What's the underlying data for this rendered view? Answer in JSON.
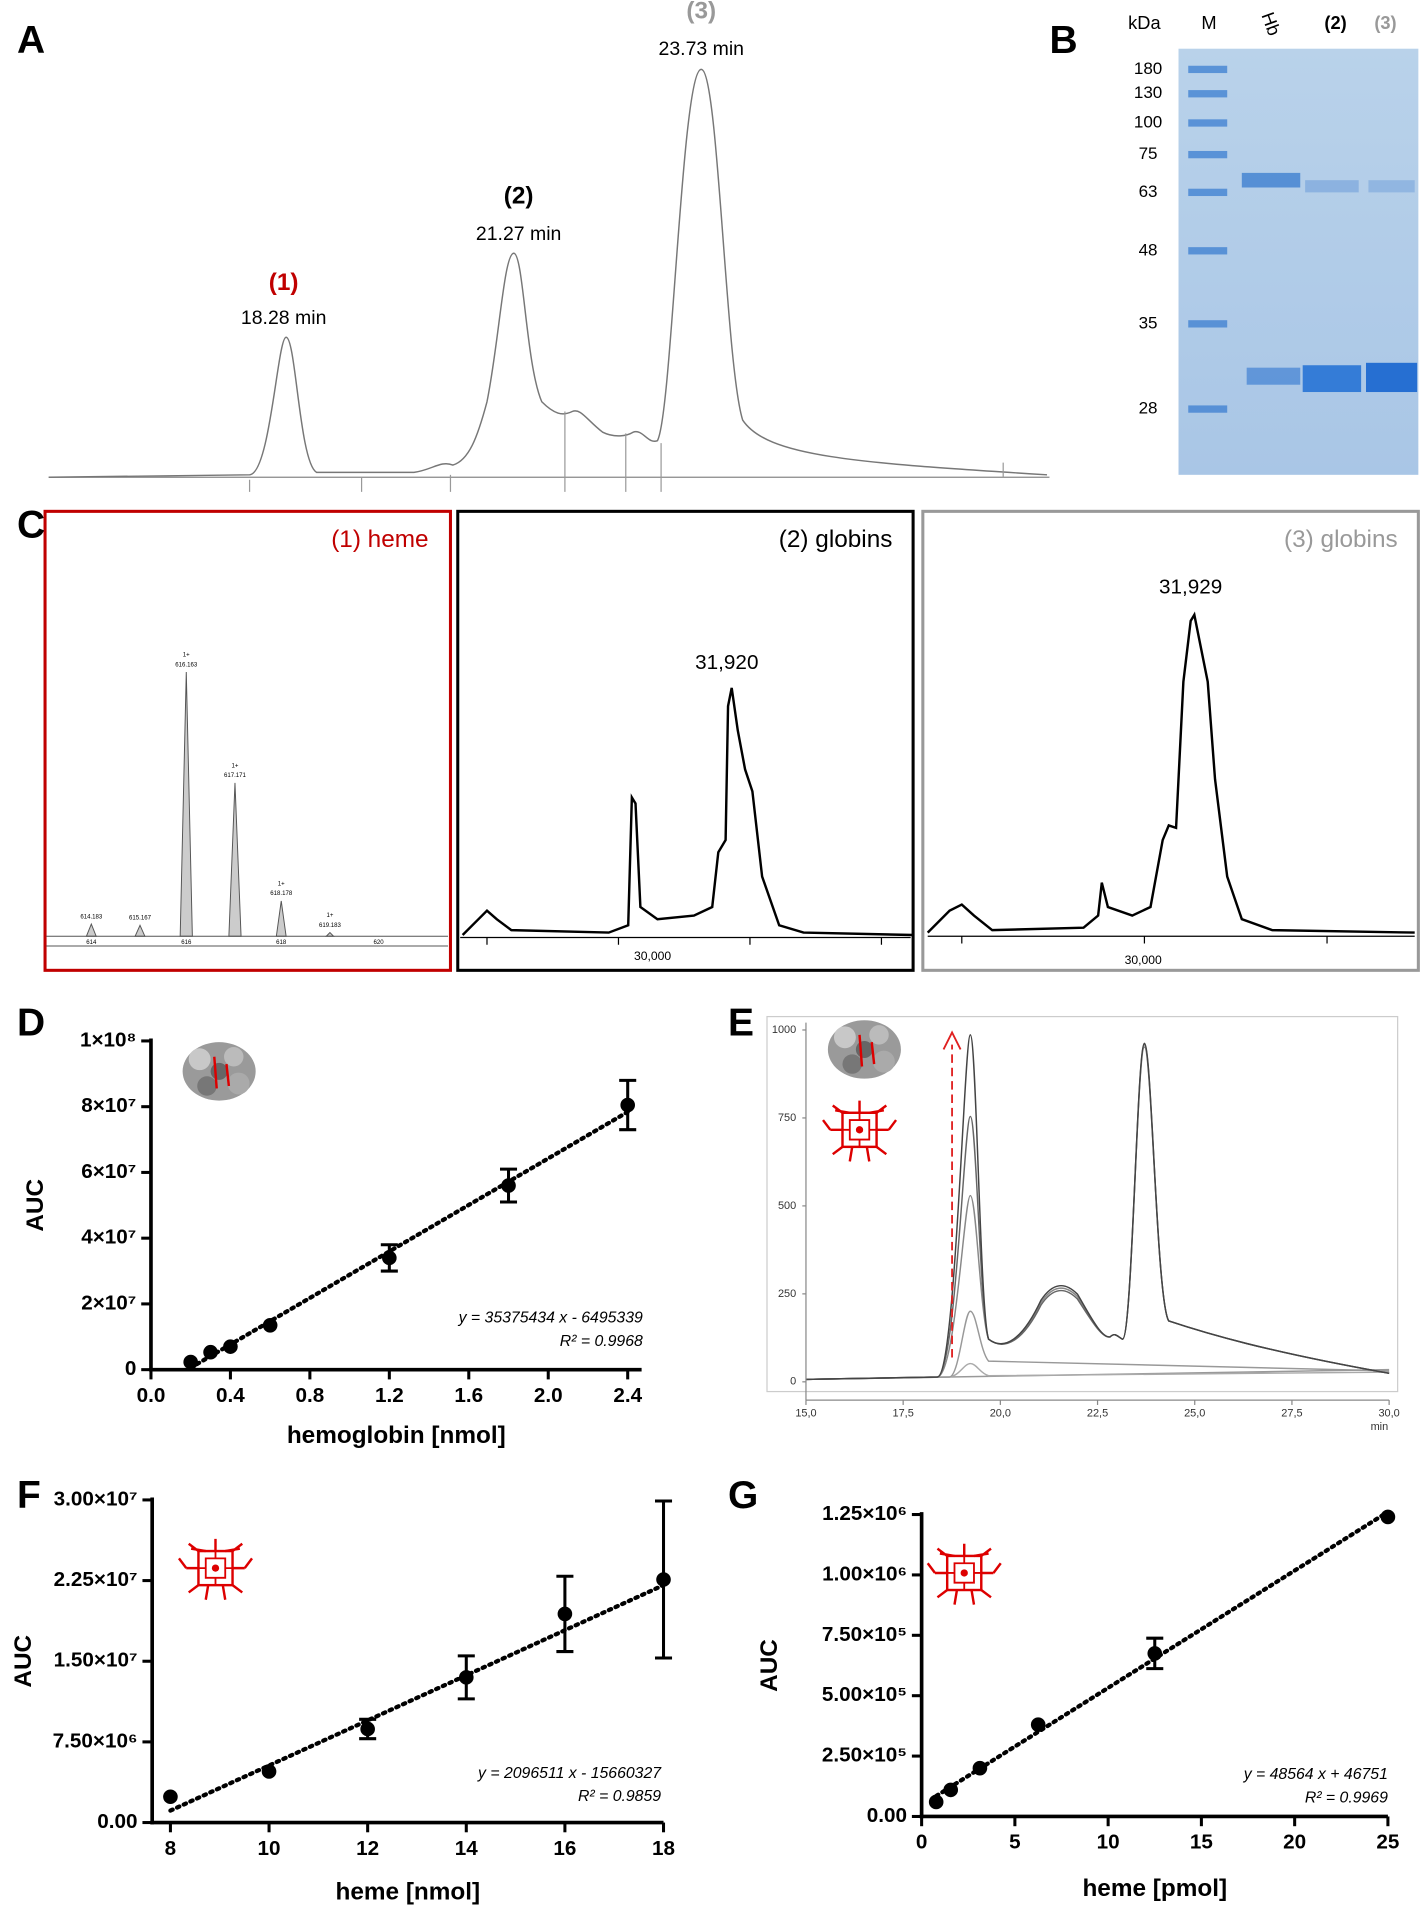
{
  "panel_labels": [
    "A",
    "B",
    "C",
    "D",
    "E",
    "F",
    "G"
  ],
  "chart_data": [
    {
      "type": "trace",
      "peaks": [
        {
          "label": "(1)",
          "time": "18.28 min",
          "color": "#c00000"
        },
        {
          "label": "(2)",
          "time": "21.27 min",
          "color": "#000000"
        },
        {
          "label": "(3)",
          "time": "23.73 min",
          "color": "#999999"
        }
      ]
    },
    {
      "type": "gel",
      "unit": "kDa",
      "lanes": [
        {
          "label": "M",
          "color": "#000000"
        },
        {
          "label": "Hb",
          "color": "#000000"
        },
        {
          "label": "(2)",
          "color": "#000000"
        },
        {
          "label": "(3)",
          "color": "#999999"
        }
      ],
      "markers": [
        180,
        130,
        100,
        75,
        63,
        48,
        35,
        28
      ]
    },
    {
      "type": "spectrum",
      "title": "(1) heme",
      "color": "#c00000",
      "peaks": [
        "614.183",
        "615.167",
        "616.163",
        "617.171",
        "618.178",
        "619.183"
      ],
      "charge": "1+",
      "axis_labels": [
        614,
        616,
        618,
        620
      ]
    },
    {
      "type": "spectrum",
      "title": "(2) globins",
      "color": "#000000",
      "peak_label": "31,920",
      "axis_label": "30,000"
    },
    {
      "type": "spectrum",
      "title": "(3) globins",
      "color": "#999999",
      "peak_label": "31,929",
      "axis_label": "30,000"
    },
    {
      "type": "scatter",
      "x_label": "hemoglobin [nmol]",
      "y_label": "AUC",
      "x": [
        0.2,
        0.3,
        0.4,
        0.6,
        1.2,
        1.8,
        2.4
      ],
      "values": [
        2300000,
        5300000,
        7000000,
        13500000,
        34000000,
        56000000,
        80500000
      ],
      "errors": [
        null,
        null,
        null,
        null,
        4000000,
        5000000,
        7500000
      ],
      "xlim": [
        0,
        2.47
      ],
      "ylim": [
        0,
        100000000
      ],
      "xticks": [
        {
          "value": 0,
          "label": "0.0"
        },
        0.4,
        0.8,
        1.2,
        1.6,
        {
          "value": 2,
          "label": "2.0"
        },
        2.4
      ],
      "yticks": [
        0,
        {
          "value": 20000000,
          "label": "2×10⁷"
        },
        {
          "value": 40000000,
          "label": "4×10⁷"
        },
        {
          "value": 60000000,
          "label": "6×10⁷"
        },
        {
          "value": 80000000,
          "label": "8×10⁷"
        },
        {
          "value": 100000000,
          "label": "1×10⁸"
        }
      ],
      "fit": {
        "slope": 35375434,
        "intercept": -6495339
      },
      "equation": "y = 35375434 x - 6495339",
      "r2": "R² = 0.9968",
      "color": "#000000"
    },
    {
      "type": "line",
      "x_unit": "min",
      "arrow_color": "#e02020",
      "xlim": [
        15,
        30
      ],
      "ylim": [
        0,
        1000
      ],
      "xticks": [
        {
          "value": 15,
          "label": "15,0"
        },
        {
          "value": 17.5,
          "label": "17,5"
        },
        {
          "value": 20,
          "label": "20,0"
        },
        {
          "value": 22.5,
          "label": "22,5"
        },
        {
          "value": 25,
          "label": "25,0"
        },
        {
          "value": 27.5,
          "label": "27,5"
        },
        {
          "value": 30,
          "label": "30,0"
        }
      ],
      "yticks": [
        0,
        250,
        500,
        750,
        1000
      ]
    },
    {
      "type": "scatter",
      "x_label": "heme [nmol]",
      "y_label": "AUC",
      "x": [
        8,
        10,
        12,
        14,
        16,
        18
      ],
      "values": [
        2400000,
        4750000,
        8700000,
        13500000,
        19400000,
        22600000
      ],
      "errors": [
        null,
        null,
        900000,
        2000000,
        3500000,
        7300000
      ],
      "xlim": [
        7.63,
        18
      ],
      "ylim": [
        0,
        30000000
      ],
      "xticks": [
        8,
        10,
        12,
        14,
        16,
        18
      ],
      "yticks": [
        {
          "value": 0,
          "label": "0.00"
        },
        {
          "value": 7500000,
          "label": "7.50×10⁶"
        },
        {
          "value": 15000000,
          "label": "1.50×10⁷"
        },
        {
          "value": 22500000,
          "label": "2.25×10⁷"
        },
        {
          "value": 30000000,
          "label": "3.00×10⁷"
        }
      ],
      "fit": {
        "slope": 2096511,
        "intercept": -15660327
      },
      "equation": "y = 2096511 x - 15660327",
      "r2": "R² = 0.9859",
      "color": "#000000"
    },
    {
      "type": "scatter",
      "x_label": "heme [pmol]",
      "y_label": "AUC",
      "x": [
        0.78,
        1.56,
        3.125,
        6.25,
        12.5,
        25
      ],
      "values": [
        60000,
        110000,
        200000,
        380000,
        675000,
        1240000
      ],
      "errors": [
        null,
        null,
        null,
        null,
        63000,
        null
      ],
      "xlim": [
        0,
        25
      ],
      "ylim": [
        0,
        1250000
      ],
      "xticks": [
        0,
        5,
        10,
        15,
        20,
        25
      ],
      "yticks": [
        {
          "value": 0,
          "label": "0.00"
        },
        {
          "value": 250000,
          "label": "2.50×10⁵"
        },
        {
          "value": 500000,
          "label": "5.00×10⁵"
        },
        {
          "value": 750000,
          "label": "7.50×10⁵"
        },
        {
          "value": 1000000,
          "label": "1.00×10⁶"
        },
        {
          "value": 1250000,
          "label": "1.25×10⁶"
        }
      ],
      "fit": {
        "slope": 48564,
        "intercept": 46751
      },
      "equation": "y = 48564 x + 46751",
      "r2": "R² = 0.9969",
      "color": "#000000"
    }
  ]
}
